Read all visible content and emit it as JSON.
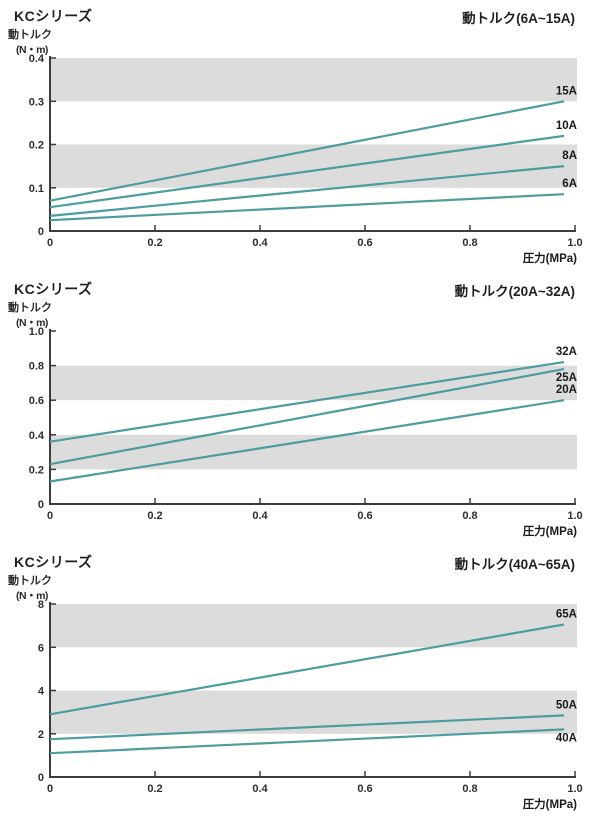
{
  "colors": {
    "line": "#4d9da0",
    "band": "#dcdcdc",
    "axis": "#3c3c3c",
    "text": "#1f1f1f"
  },
  "chart_data": [
    {
      "type": "line",
      "family": "KCシリーズ",
      "title": "動トルク(6A~15A)",
      "ylabel": "動トルク",
      "yunit": "(N・m)",
      "xlabel": "圧力(MPa)",
      "xlim": [
        0,
        1.0
      ],
      "ylim": [
        0,
        0.4
      ],
      "xticks": {
        "values": [
          0,
          0.2,
          0.4,
          0.6,
          0.8,
          1.0
        ],
        "labels": [
          "0",
          "0.2",
          "0.4",
          "0.6",
          "0.8",
          "1.0"
        ]
      },
      "yticks": {
        "values": [
          0,
          0.1,
          0.2,
          0.3,
          0.4
        ],
        "labels": [
          "0",
          "0.1",
          "0.2",
          "0.3",
          "0.4"
        ]
      },
      "bands": [
        [
          0.1,
          0.2
        ],
        [
          0.3,
          0.4
        ]
      ],
      "legend_position": "right-of-line-ends",
      "grid": false,
      "series": [
        {
          "name": "15A",
          "points": [
            [
              0,
              0.07
            ],
            [
              1.0,
              0.3
            ]
          ],
          "label_position": "above"
        },
        {
          "name": "10A",
          "points": [
            [
              0,
              0.055
            ],
            [
              1.0,
              0.22
            ]
          ],
          "label_position": "above"
        },
        {
          "name": "8A",
          "points": [
            [
              0,
              0.035
            ],
            [
              1.0,
              0.15
            ]
          ],
          "label_position": "above"
        },
        {
          "name": "6A",
          "points": [
            [
              0,
              0.025
            ],
            [
              1.0,
              0.085
            ]
          ],
          "label_position": "above"
        }
      ]
    },
    {
      "type": "line",
      "family": "KCシリーズ",
      "title": "動トルク(20A~32A)",
      "ylabel": "動トルク",
      "yunit": "(N・m)",
      "xlabel": "圧力(MPa)",
      "xlim": [
        0,
        1.0
      ],
      "ylim": [
        0,
        1.0
      ],
      "xticks": {
        "values": [
          0,
          0.2,
          0.4,
          0.6,
          0.8,
          1.0
        ],
        "labels": [
          "0",
          "0.2",
          "0.4",
          "0.6",
          "0.8",
          "1.0"
        ]
      },
      "yticks": {
        "values": [
          0,
          0.2,
          0.4,
          0.6,
          0.8,
          1.0
        ],
        "labels": [
          "0",
          "0.2",
          "0.4",
          "0.6",
          "0.8",
          "1.0"
        ]
      },
      "bands": [
        [
          0.2,
          0.4
        ],
        [
          0.6,
          0.8
        ]
      ],
      "legend_position": "right-of-line-ends",
      "grid": false,
      "series": [
        {
          "name": "32A",
          "points": [
            [
              0,
              0.36
            ],
            [
              1.0,
              0.82
            ]
          ],
          "label_position": "above"
        },
        {
          "name": "25A",
          "points": [
            [
              0,
              0.23
            ],
            [
              1.0,
              0.78
            ]
          ],
          "label_position": "below"
        },
        {
          "name": "20A",
          "points": [
            [
              0,
              0.13
            ],
            [
              1.0,
              0.6
            ]
          ],
          "label_position": "above"
        }
      ]
    },
    {
      "type": "line",
      "family": "KCシリーズ",
      "title": "動トルク(40A~65A)",
      "ylabel": "動トルク",
      "yunit": "(N・m)",
      "xlabel": "圧力(MPa)",
      "xlim": [
        0,
        1.0
      ],
      "ylim": [
        0,
        8
      ],
      "xticks": {
        "values": [
          0,
          0.2,
          0.4,
          0.6,
          0.8,
          1.0
        ],
        "labels": [
          "0",
          "0.2",
          "0.4",
          "0.6",
          "0.8",
          "1.0"
        ]
      },
      "yticks": {
        "values": [
          0,
          2,
          4,
          6,
          8
        ],
        "labels": [
          "0",
          "2",
          "4",
          "6",
          "8"
        ]
      },
      "bands": [
        [
          2,
          4
        ],
        [
          6,
          8
        ]
      ],
      "legend_position": "right-of-line-ends",
      "grid": false,
      "series": [
        {
          "name": "65A",
          "points": [
            [
              0,
              2.9
            ],
            [
              1.0,
              7.05
            ]
          ],
          "label_position": "above"
        },
        {
          "name": "50A",
          "points": [
            [
              0,
              1.75
            ],
            [
              1.0,
              2.85
            ]
          ],
          "label_position": "above"
        },
        {
          "name": "40A",
          "points": [
            [
              0,
              1.1
            ],
            [
              1.0,
              2.2
            ]
          ],
          "label_position": "below"
        }
      ]
    }
  ]
}
